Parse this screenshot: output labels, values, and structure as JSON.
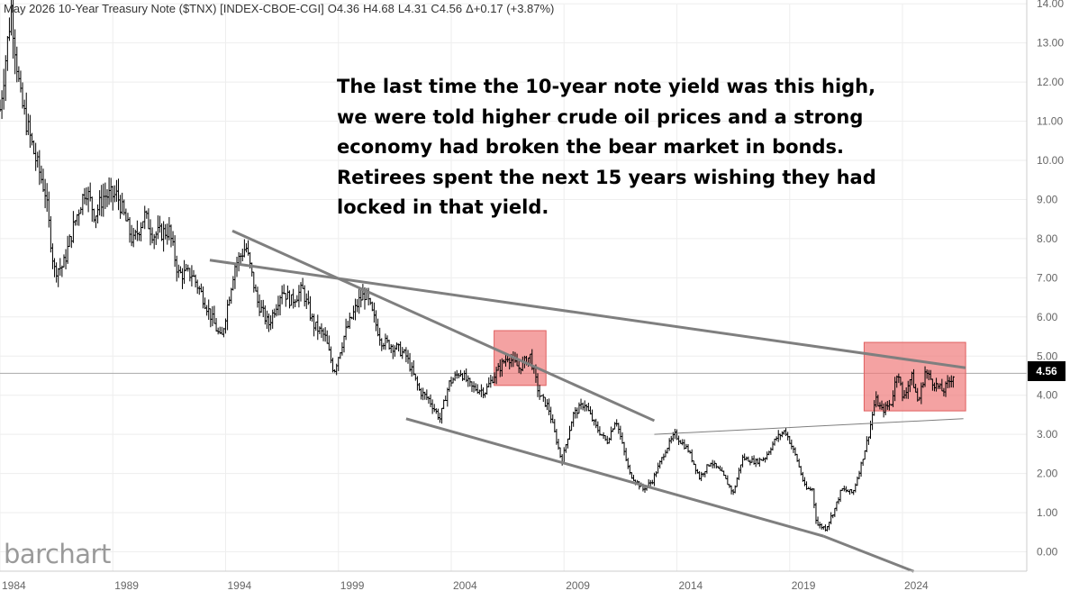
{
  "header": {
    "title": "May 2026 10-Year Treasury Note ($TNX) [INDEX-CBOE-CGI]",
    "open": "O4.36",
    "high": "H4.68",
    "low": "L4.31",
    "close": "C4.56",
    "change": "Δ+0.17 (+3.87%)"
  },
  "annotation": {
    "lines": [
      "The last time the 10-year note yield was this high,",
      "we were told higher crude oil prices and a strong",
      "economy had broken the bear market in bonds.",
      "Retirees spent the next 15 years wishing they had",
      "locked in that yield."
    ]
  },
  "logo": "barchart",
  "last_price_tag": "4.56",
  "chart_data": {
    "type": "ohlc",
    "title": "May 2026 10-Year Treasury Note ($TNX) [INDEX-CBOE-CGI]",
    "xlim": [
      1984.0,
      2027.0
    ],
    "ylim": [
      -0.5,
      14.0
    ],
    "x_ticks": [
      "1984",
      "1989",
      "1994",
      "1999",
      "2004",
      "2009",
      "2014",
      "2019",
      "2024"
    ],
    "y_ticks": [
      "0.00",
      "1.00",
      "2.00",
      "3.00",
      "4.00",
      "5.00",
      "6.00",
      "7.00",
      "8.00",
      "9.00",
      "10.00",
      "11.00",
      "12.00",
      "13.00",
      "14.00"
    ],
    "grid": true,
    "current_price": 4.56,
    "colors": {
      "bars": "#000000",
      "trendlines": "#7f7f7f",
      "highlight": "#f07b7b",
      "grid": "#eeeeee",
      "price_line": "#aaaaaa"
    },
    "series": [
      {
        "values": [
          [
            1984.0,
            11.3
          ],
          [
            1984.5,
            13.9
          ],
          [
            1984.9,
            11.6
          ],
          [
            1985.5,
            10.2
          ],
          [
            1986.0,
            9.2
          ],
          [
            1986.4,
            7.2
          ],
          [
            1986.8,
            7.3
          ],
          [
            1987.3,
            8.4
          ],
          [
            1987.8,
            9.3
          ],
          [
            1988.2,
            8.6
          ],
          [
            1988.6,
            9.1
          ],
          [
            1989.2,
            9.1
          ],
          [
            1989.9,
            7.9
          ],
          [
            1990.4,
            8.6
          ],
          [
            1990.8,
            8.1
          ],
          [
            1991.5,
            8.2
          ],
          [
            1991.9,
            7.1
          ],
          [
            1992.5,
            7.1
          ],
          [
            1993.0,
            6.5
          ],
          [
            1993.8,
            5.4
          ],
          [
            1994.4,
            7.3
          ],
          [
            1994.9,
            7.8
          ],
          [
            1995.4,
            6.4
          ],
          [
            1995.9,
            5.8
          ],
          [
            1996.5,
            6.7
          ],
          [
            1996.9,
            6.4
          ],
          [
            1997.4,
            6.7
          ],
          [
            1997.9,
            5.8
          ],
          [
            1998.4,
            5.5
          ],
          [
            1998.8,
            4.6
          ],
          [
            1999.3,
            5.6
          ],
          [
            1999.9,
            6.4
          ],
          [
            2000.2,
            6.6
          ],
          [
            2000.9,
            5.4
          ],
          [
            2001.6,
            5.2
          ],
          [
            2002.0,
            5.0
          ],
          [
            2002.6,
            4.1
          ],
          [
            2003.0,
            3.9
          ],
          [
            2003.5,
            3.4
          ],
          [
            2003.9,
            4.3
          ],
          [
            2004.4,
            4.6
          ],
          [
            2004.9,
            4.2
          ],
          [
            2005.5,
            4.1
          ],
          [
            2005.9,
            4.5
          ],
          [
            2006.5,
            5.0
          ],
          [
            2007.0,
            4.7
          ],
          [
            2007.5,
            5.0
          ],
          [
            2007.9,
            4.0
          ],
          [
            2008.3,
            3.7
          ],
          [
            2008.9,
            2.3
          ],
          [
            2009.4,
            3.5
          ],
          [
            2009.9,
            3.8
          ],
          [
            2010.4,
            3.2
          ],
          [
            2010.9,
            2.8
          ],
          [
            2011.3,
            3.4
          ],
          [
            2011.9,
            2.0
          ],
          [
            2012.5,
            1.6
          ],
          [
            2012.9,
            1.8
          ],
          [
            2013.5,
            2.6
          ],
          [
            2013.9,
            3.0
          ],
          [
            2014.5,
            2.6
          ],
          [
            2015.0,
            1.9
          ],
          [
            2015.5,
            2.3
          ],
          [
            2016.0,
            2.0
          ],
          [
            2016.5,
            1.5
          ],
          [
            2016.9,
            2.4
          ],
          [
            2017.5,
            2.3
          ],
          [
            2017.9,
            2.4
          ],
          [
            2018.4,
            2.9
          ],
          [
            2018.8,
            3.1
          ],
          [
            2019.3,
            2.4
          ],
          [
            2019.7,
            1.6
          ],
          [
            2020.0,
            1.6
          ],
          [
            2020.2,
            0.7
          ],
          [
            2020.6,
            0.6
          ],
          [
            2021.0,
            1.1
          ],
          [
            2021.3,
            1.6
          ],
          [
            2021.8,
            1.5
          ],
          [
            2022.2,
            2.3
          ],
          [
            2022.5,
            3.0
          ],
          [
            2022.8,
            3.9
          ],
          [
            2023.1,
            3.6
          ],
          [
            2023.5,
            3.8
          ],
          [
            2023.8,
            4.7
          ],
          [
            2024.0,
            3.9
          ],
          [
            2024.4,
            4.5
          ],
          [
            2024.7,
            3.8
          ],
          [
            2025.0,
            4.6
          ],
          [
            2025.4,
            4.3
          ],
          [
            2025.8,
            4.1
          ],
          [
            2026.3,
            4.56
          ]
        ]
      }
    ],
    "trendlines": [
      {
        "from": [
          1994.3,
          8.2
        ],
        "to": [
          2013.0,
          3.35
        ],
        "weight": "thick"
      },
      {
        "from": [
          1993.3,
          7.45
        ],
        "to": [
          2026.8,
          4.7
        ],
        "weight": "thick"
      },
      {
        "from": [
          2002.0,
          3.4
        ],
        "to": [
          2020.5,
          0.4
        ],
        "weight": "thick"
      },
      {
        "from": [
          2020.5,
          0.4
        ],
        "to": [
          2024.5,
          -0.5
        ],
        "weight": "thick"
      },
      {
        "from": [
          2013.0,
          3.0
        ],
        "to": [
          2026.7,
          3.4
        ],
        "weight": "thin"
      }
    ],
    "highlight_boxes": [
      {
        "x": [
          2005.9,
          2008.2
        ],
        "y": [
          4.25,
          5.65
        ]
      },
      {
        "x": [
          2022.3,
          2026.8
        ],
        "y": [
          3.6,
          5.35
        ]
      }
    ]
  }
}
